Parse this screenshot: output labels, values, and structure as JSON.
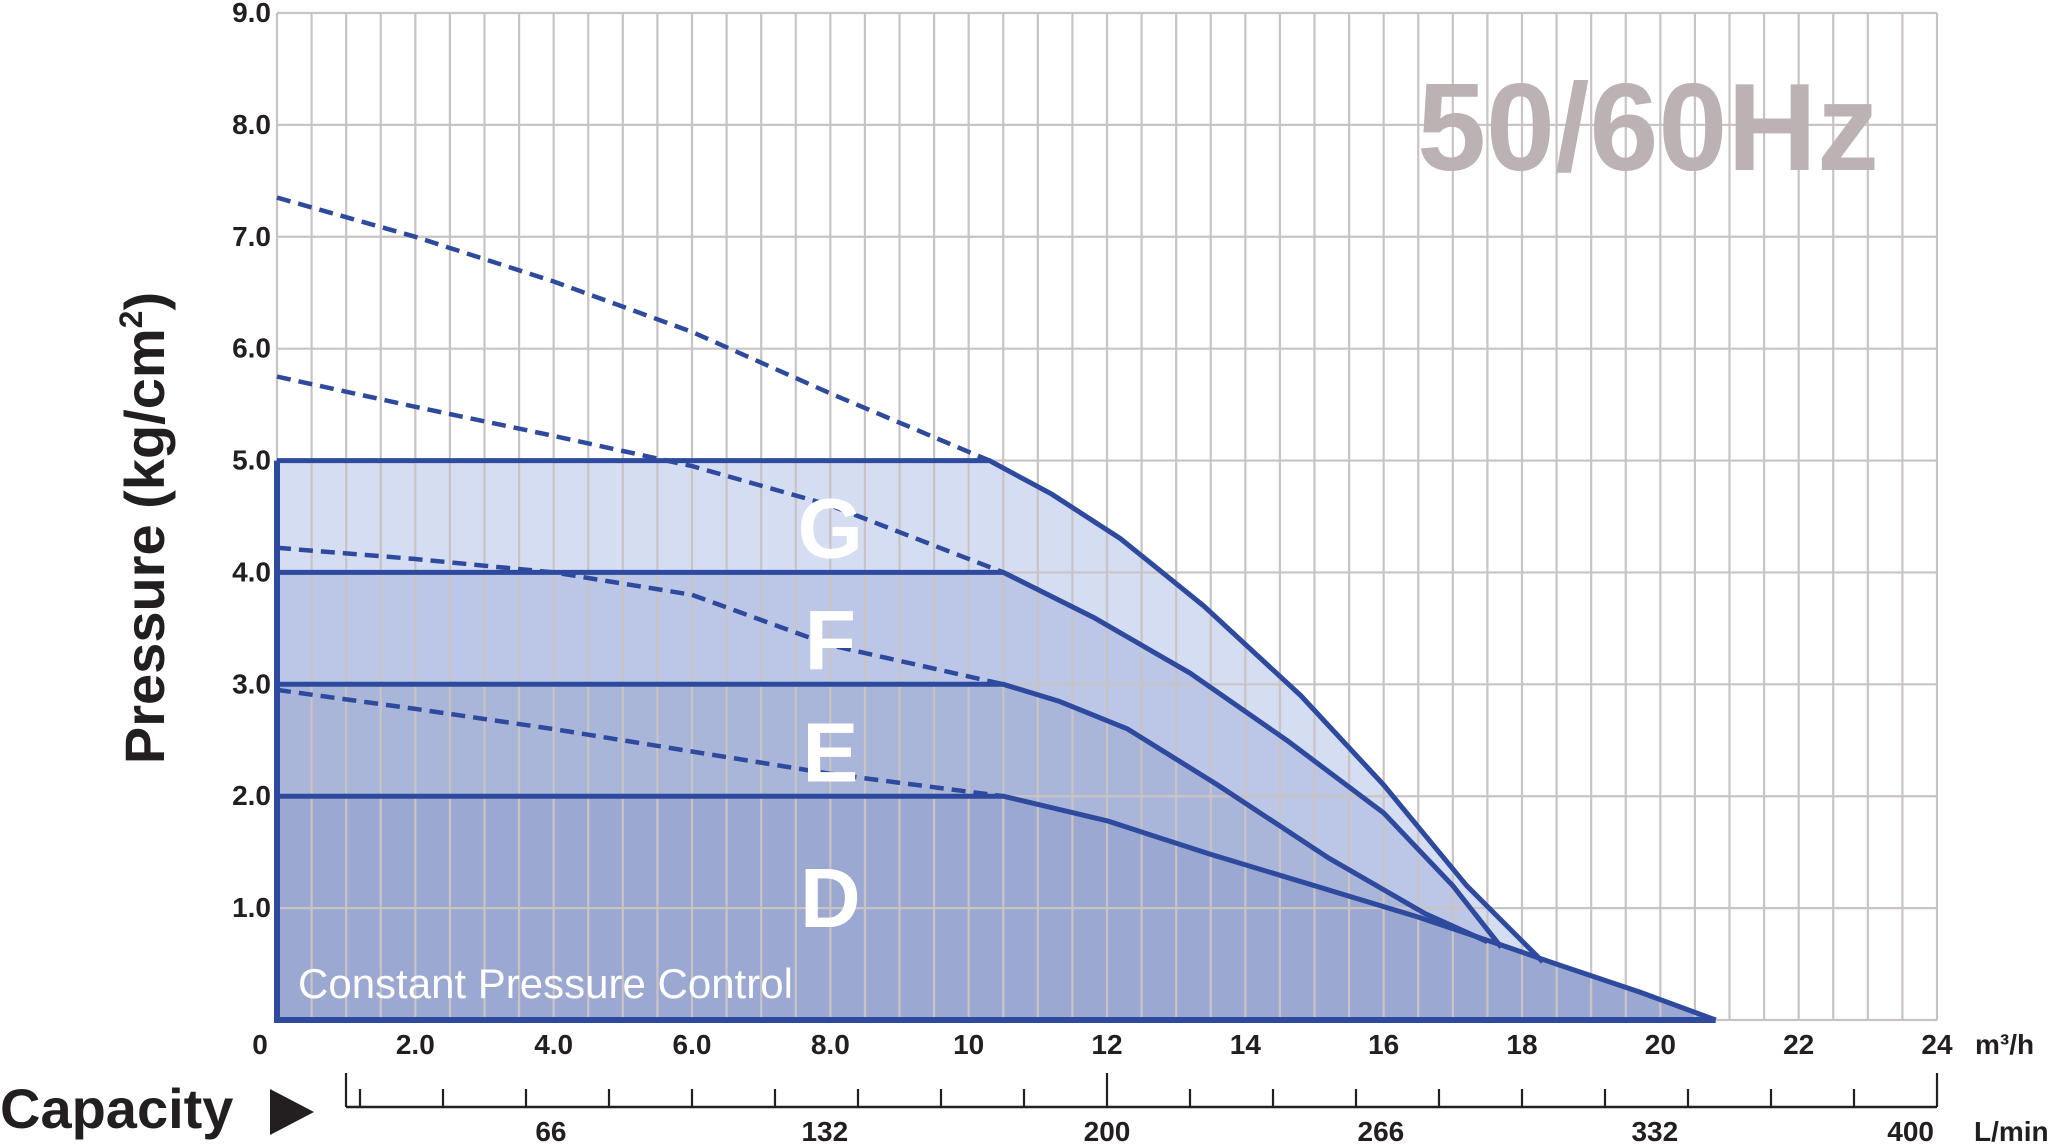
{
  "chart_data": {
    "type": "area",
    "title": "50/60Hz",
    "ylabel": "Pressure (kg/cm2)",
    "ylabel_main": "Pressure (kg/cm",
    "ylabel_sup": "2",
    "ylabel_close": ")",
    "xlabel": "Capacity",
    "xunit_m3h": "m³/h",
    "xunit_lmin": "L/min",
    "xlim": [
      0,
      24
    ],
    "ylim": [
      0,
      9
    ],
    "grid": true,
    "y_ticks": [
      "9.0",
      "8.0",
      "7.0",
      "6.0",
      "5.0",
      "4.0",
      "3.0",
      "2.0",
      "1.0"
    ],
    "x_ticks_m3h": [
      "0",
      "2.0",
      "4.0",
      "6.0",
      "8.0",
      "10",
      "12",
      "14",
      "16",
      "18",
      "20",
      "22",
      "24"
    ],
    "x_ticks_lmin": [
      "66",
      "132",
      "200",
      "266",
      "332",
      "400"
    ],
    "note": "Constant Pressure Control",
    "colors": {
      "line": "#2e4a9e",
      "grid": "#c9c3c4",
      "zone_D": "#9aa8d2",
      "zone_E": "#a9b6da",
      "zone_F": "#bcc6e6",
      "zone_G": "#d5ddf2"
    },
    "zones": [
      {
        "label": "G",
        "setpoint": 5.0,
        "boundary": [
          [
            0,
            5.0
          ],
          [
            10.3,
            5.0
          ],
          [
            11.2,
            4.7
          ],
          [
            12.2,
            4.3
          ],
          [
            13.4,
            3.7
          ],
          [
            14.8,
            2.9
          ],
          [
            16.0,
            2.1
          ],
          [
            17.2,
            1.2
          ],
          [
            18.3,
            0.52
          ]
        ],
        "dashed_curve": [
          [
            0,
            5.75
          ],
          [
            2.0,
            5.48
          ],
          [
            4.0,
            5.22
          ],
          [
            6.0,
            4.95
          ],
          [
            8.0,
            4.6
          ],
          [
            10.5,
            4.0
          ]
        ]
      },
      {
        "label": "F",
        "setpoint": 4.0,
        "boundary": [
          [
            0,
            4.0
          ],
          [
            10.5,
            4.0
          ],
          [
            11.8,
            3.6
          ],
          [
            13.2,
            3.1
          ],
          [
            14.6,
            2.5
          ],
          [
            16.0,
            1.85
          ],
          [
            17.0,
            1.2
          ],
          [
            17.7,
            0.65
          ]
        ],
        "dashed_curve": [
          [
            0,
            4.22
          ],
          [
            2.0,
            4.12
          ],
          [
            4.0,
            4.0
          ],
          [
            6.0,
            3.8
          ],
          [
            8.0,
            3.35
          ],
          [
            10.5,
            3.0
          ]
        ]
      },
      {
        "label": "E",
        "setpoint": 3.0,
        "boundary": [
          [
            0,
            3.0
          ],
          [
            10.5,
            3.0
          ],
          [
            11.3,
            2.85
          ],
          [
            12.3,
            2.6
          ],
          [
            13.6,
            2.1
          ],
          [
            15.2,
            1.45
          ],
          [
            16.6,
            0.95
          ],
          [
            17.5,
            0.7
          ]
        ],
        "dashed_curve": [
          [
            0,
            2.95
          ],
          [
            2.0,
            2.78
          ],
          [
            4.0,
            2.6
          ],
          [
            6.0,
            2.4
          ],
          [
            8.0,
            2.2
          ],
          [
            10.5,
            2.0
          ]
        ]
      },
      {
        "label": "D",
        "setpoint": 2.0,
        "boundary": [
          [
            0,
            2.0
          ],
          [
            10.5,
            2.0
          ],
          [
            12.0,
            1.78
          ],
          [
            13.5,
            1.48
          ],
          [
            15.0,
            1.2
          ],
          [
            16.5,
            0.92
          ],
          [
            17.7,
            0.67
          ],
          [
            18.5,
            0.5
          ],
          [
            19.7,
            0.25
          ],
          [
            20.8,
            0.0
          ]
        ],
        "dashed_curve": []
      }
    ],
    "upper_dashed_curve": [
      [
        0,
        7.35
      ],
      [
        2.0,
        7.0
      ],
      [
        4.0,
        6.6
      ],
      [
        6.0,
        6.15
      ],
      [
        8.0,
        5.6
      ],
      [
        10.3,
        5.0
      ]
    ]
  }
}
